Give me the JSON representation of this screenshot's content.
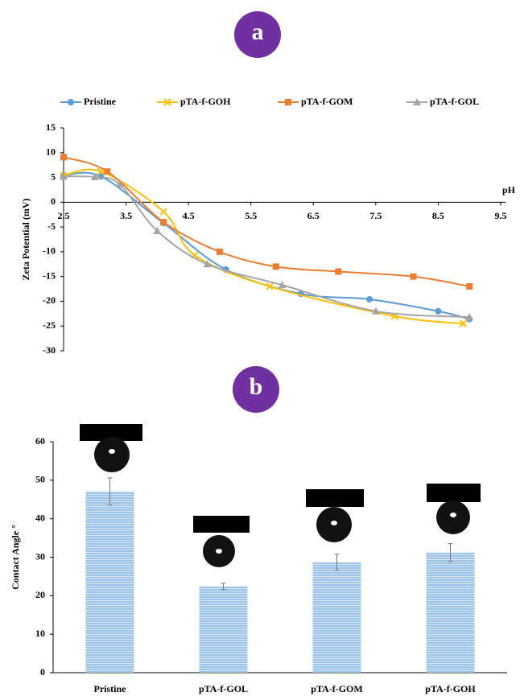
{
  "chart_data": [
    {
      "type": "line",
      "panel_label": "a",
      "x_label": "pH",
      "y_label": "Zeta Potential (mV)",
      "xlim": [
        2.5,
        9.5
      ],
      "xticks": [
        2.5,
        3.5,
        4.5,
        5.5,
        6.5,
        7.5,
        8.5,
        9.5
      ],
      "ylim": [
        -30,
        15
      ],
      "yticks": [
        15,
        10,
        5,
        0,
        -5,
        -10,
        -15,
        -20,
        -25,
        -30
      ],
      "legend": "top",
      "series": [
        {
          "name": "Pristine",
          "color": "#5b9bd5",
          "marker": "circle",
          "x": [
            2.5,
            3.1,
            4.1,
            5.1,
            6.3,
            7.4,
            8.5,
            9.0
          ],
          "values": [
            5.4,
            5.2,
            -4.2,
            -13.6,
            -18.5,
            -19.6,
            -22,
            -23.6
          ]
        },
        {
          "name": "pTA-f-GOH",
          "color": "#ffc000",
          "marker": "x",
          "x": [
            2.5,
            3.1,
            4.1,
            4.6,
            5.8,
            7.8,
            8.9
          ],
          "values": [
            5.4,
            6.2,
            -1.9,
            -10.7,
            -17,
            -23,
            -24.5
          ]
        },
        {
          "name": "pTA-f-GOM",
          "color": "#ed7d31",
          "marker": "square",
          "x": [
            2.5,
            3.2,
            4.1,
            5.0,
            5.9,
            6.9,
            8.1,
            9.0
          ],
          "values": [
            9.1,
            6.2,
            -4,
            -10,
            -13,
            -14,
            -15,
            -17
          ]
        },
        {
          "name": "pTA-f-GOL",
          "color": "#a5a5a5",
          "marker": "triangle",
          "x": [
            2.5,
            3.0,
            3.4,
            4.0,
            4.8,
            6.0,
            7.5,
            9.0
          ],
          "values": [
            5.2,
            5.1,
            3.6,
            -5.8,
            -12.5,
            -16.7,
            -22,
            -23.2
          ]
        }
      ]
    },
    {
      "type": "bar",
      "panel_label": "b",
      "y_label": "Contact Angle °",
      "categories": [
        "Pristine",
        "pTA-f-GOL",
        "pTA-f-GOM",
        "pTA-f-GOH"
      ],
      "values": [
        47.1,
        22.4,
        28.7,
        31.2
      ],
      "errors": [
        3.5,
        0.8,
        2.1,
        2.3
      ],
      "color": "#9dc3e6",
      "ylim": [
        0,
        60
      ],
      "yticks": [
        0,
        10,
        20,
        30,
        40,
        50,
        60
      ]
    }
  ]
}
